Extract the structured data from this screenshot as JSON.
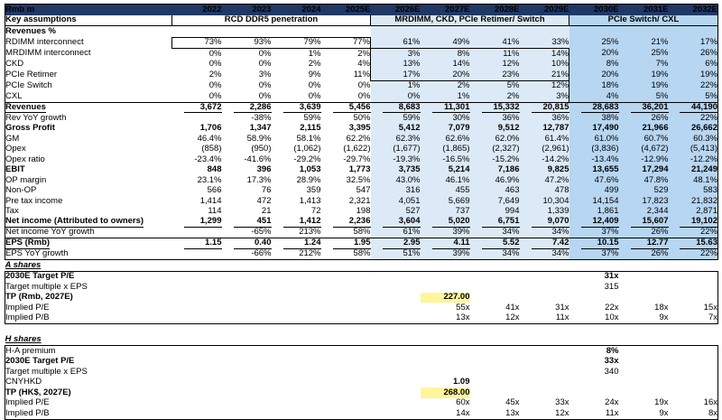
{
  "colors": {
    "header_navy": "#1F3864",
    "band_light_blue": "#DCEAF7",
    "band_medium_blue": "#B7D6F2",
    "highlight_yellow": "#FFF59B",
    "accent_blue_text": "#0000EE"
  },
  "table": {
    "header_label": "Rmb m",
    "years": [
      "2022",
      "2023",
      "2024",
      "2025E",
      "2026E",
      "2027E",
      "2028E",
      "2029E",
      "2030E",
      "2031E",
      "2032E"
    ],
    "key_assumptions": {
      "label": "Key assumptions",
      "bands": [
        {
          "text": "RCD DDR5 penetration",
          "cols": 4,
          "bg": "none"
        },
        {
          "text": "MRDIMM, CKD, PCIe Retimer/ Switch",
          "cols": 4,
          "bg": "light"
        },
        {
          "text": "PCIe Switch/ CXL",
          "cols": 3,
          "bg": "medium"
        }
      ]
    },
    "main_rows": [
      {
        "id": "revenues-pct",
        "label": "Revenues %",
        "b": 1,
        "values": [
          "",
          "",
          "",
          "",
          "",
          "",
          "",
          "",
          "",
          "",
          ""
        ]
      },
      {
        "id": "rdimm",
        "label": "RDIMM interconnect",
        "ind": 1,
        "values": [
          "73%",
          "93%",
          "79%",
          "77%",
          "61%",
          "49%",
          "41%",
          "33%",
          "25%",
          "21%",
          "17%"
        ]
      },
      {
        "id": "mrdimm",
        "label": "MRDIMM interconnect",
        "ind": 1,
        "values": [
          "0%",
          "0%",
          "1%",
          "2%",
          "3%",
          "8%",
          "11%",
          "14%",
          "20%",
          "25%",
          "26%"
        ]
      },
      {
        "id": "ckd",
        "label": "CKD",
        "ind": 1,
        "values": [
          "0%",
          "0%",
          "2%",
          "4%",
          "13%",
          "14%",
          "12%",
          "10%",
          "8%",
          "7%",
          "6%"
        ]
      },
      {
        "id": "pcie-retimer",
        "label": "PCIe Retimer",
        "ind": 1,
        "values": [
          "2%",
          "3%",
          "9%",
          "11%",
          "17%",
          "20%",
          "23%",
          "21%",
          "20%",
          "19%",
          "19%"
        ]
      },
      {
        "id": "pcie-switch",
        "label": "PCIe Switch",
        "ind": 1,
        "values": [
          "0%",
          "0%",
          "0%",
          "0%",
          "1%",
          "2%",
          "5%",
          "12%",
          "18%",
          "19%",
          "22%"
        ]
      },
      {
        "id": "cxl",
        "label": "CXL",
        "ind": 1,
        "values": [
          "0%",
          "0%",
          "0%",
          "0%",
          "0%",
          "1%",
          "2%",
          "3%",
          "4%",
          "5%",
          "5%"
        ]
      },
      {
        "id": "revenues",
        "label": "Revenues",
        "b": 1,
        "u": 1,
        "tl": 1,
        "values": [
          "3,672",
          "2,286",
          "3,639",
          "5,456",
          "8,683",
          "11,301",
          "15,332",
          "20,815",
          "28,683",
          "36,201",
          "44,190"
        ]
      },
      {
        "id": "rev-yoy",
        "label": "Rev YoY growth",
        "ind": 1,
        "values": [
          "",
          "-38%",
          "59%",
          "50%",
          "59%",
          "30%",
          "36%",
          "36%",
          "38%",
          "26%",
          "22%"
        ]
      },
      {
        "id": "gross-profit",
        "label": "Gross Profit",
        "b": 1,
        "values": [
          "1,706",
          "1,347",
          "2,115",
          "3,395",
          "5,412",
          "7,079",
          "9,512",
          "12,787",
          "17,490",
          "21,966",
          "26,662"
        ]
      },
      {
        "id": "gm",
        "label": "GM",
        "ind": 1,
        "values": [
          "46.4%",
          "58.9%",
          "58.1%",
          "62.2%",
          "62.3%",
          "62.6%",
          "62.0%",
          "61.4%",
          "61.0%",
          "60.7%",
          "60.3%"
        ]
      },
      {
        "id": "opex",
        "label": "Opex",
        "values": [
          "(858)",
          "(950)",
          "(1,062)",
          "(1,622)",
          "(1,677)",
          "(1,865)",
          "(2,327)",
          "(2,961)",
          "(3,836)",
          "(4,672)",
          "(5,413)"
        ]
      },
      {
        "id": "opex-ratio",
        "label": "Opex ratio",
        "ind": 1,
        "values": [
          "-23.4%",
          "-41.6%",
          "-29.2%",
          "-29.7%",
          "-19.3%",
          "-16.5%",
          "-15.2%",
          "-14.2%",
          "-13.4%",
          "-12.9%",
          "-12.2%"
        ]
      },
      {
        "id": "ebit",
        "label": "EBIT",
        "b": 1,
        "values": [
          "848",
          "396",
          "1,053",
          "1,773",
          "3,735",
          "5,214",
          "7,186",
          "9,825",
          "13,655",
          "17,294",
          "21,249"
        ]
      },
      {
        "id": "op-margin",
        "label": "OP margin",
        "ind": 1,
        "values": [
          "23.1%",
          "17.3%",
          "28.9%",
          "32.5%",
          "43.0%",
          "46.1%",
          "46.9%",
          "47.2%",
          "47.6%",
          "47.8%",
          "48.1%"
        ]
      },
      {
        "id": "non-op",
        "label": "Non-OP",
        "values": [
          "566",
          "76",
          "359",
          "547",
          "316",
          "455",
          "463",
          "478",
          "499",
          "529",
          "583"
        ]
      },
      {
        "id": "pre-tax-income",
        "label": "Pre tax income",
        "values": [
          "1,414",
          "472",
          "1,413",
          "2,321",
          "4,051",
          "5,669",
          "7,649",
          "10,304",
          "14,154",
          "17,823",
          "21,832"
        ]
      },
      {
        "id": "tax",
        "label": "Tax",
        "values": [
          "114",
          "21",
          "72",
          "198",
          "527",
          "737",
          "994",
          "1,339",
          "1,861",
          "2,344",
          "2,871"
        ]
      },
      {
        "id": "net-income",
        "label": "Net income (Attributed to owners)",
        "b": 1,
        "u": 1,
        "values": [
          "1,299",
          "451",
          "1,412",
          "2,236",
          "3,604",
          "5,020",
          "6,751",
          "9,070",
          "12,409",
          "15,607",
          "19,102"
        ]
      },
      {
        "id": "ni-yoy",
        "label": "Net income YoY growth",
        "ind": 1,
        "values": [
          "",
          "-65%",
          "213%",
          "58%",
          "61%",
          "39%",
          "34%",
          "34%",
          "37%",
          "26%",
          "22%"
        ]
      },
      {
        "id": "eps",
        "label": "EPS (Rmb)",
        "b": 1,
        "u": 1,
        "tl": 1,
        "values": [
          "1.15",
          "0.40",
          "1.24",
          "1.95",
          "2.95",
          "4.11",
          "5.52",
          "7.42",
          "10.15",
          "12.77",
          "15.63"
        ]
      },
      {
        "id": "eps-yoy",
        "label": "EPS YoY growth",
        "ind": 1,
        "bb": 1,
        "values": [
          "",
          "-66%",
          "212%",
          "58%",
          "51%",
          "39%",
          "34%",
          "34%",
          "37%",
          "26%",
          "22%"
        ]
      }
    ],
    "a_shares": {
      "title": "A shares",
      "rows": [
        {
          "id": "a-target-pe",
          "label": "2030E Target P/E",
          "b": 1,
          "values": [
            "",
            "",
            "",
            "",
            "",
            "",
            "",
            "",
            {
              "v": "31x",
              "c": "blue",
              "b": 1
            },
            "",
            ""
          ]
        },
        {
          "id": "a-multiple-eps",
          "label": "Target multiple x EPS",
          "values": [
            "",
            "",
            "",
            "",
            "",
            "",
            "",
            "",
            "315",
            "",
            ""
          ]
        },
        {
          "id": "a-tp",
          "label": "TP (Rmb, 2027E)",
          "b": 1,
          "values": [
            "",
            "",
            "",
            "",
            "",
            {
              "v": "227.00",
              "hl": 1,
              "b": 1
            },
            "",
            "",
            "",
            "",
            ""
          ]
        },
        {
          "id": "a-implied-pe",
          "label": "Implied P/E",
          "values": [
            "",
            "",
            "",
            "",
            "",
            "55x",
            "41x",
            "31x",
            "22x",
            "18x",
            "15x"
          ]
        },
        {
          "id": "a-implied-pb",
          "label": "Implied P/B",
          "values": [
            "",
            "",
            "",
            "",
            "",
            "13x",
            "12x",
            "11x",
            "10x",
            "9x",
            "7x"
          ]
        }
      ]
    },
    "h_shares": {
      "title": "H shares",
      "rows": [
        {
          "id": "h-premium",
          "label": "H-A premium",
          "values": [
            "",
            "",
            "",
            "",
            "",
            "",
            "",
            "",
            {
              "v": "8%",
              "c": "blue",
              "b": 1
            },
            "",
            ""
          ]
        },
        {
          "id": "h-target-pe",
          "label": "2030E Target P/E",
          "b": 1,
          "values": [
            "",
            "",
            "",
            "",
            "",
            "",
            "",
            "",
            {
              "v": "33x",
              "c": "blue",
              "b": 1
            },
            "",
            ""
          ]
        },
        {
          "id": "h-multiple-eps",
          "label": "Target multiple x EPS",
          "values": [
            "",
            "",
            "",
            "",
            "",
            "",
            "",
            "",
            "340",
            "",
            ""
          ]
        },
        {
          "id": "h-cnyhkd",
          "label": "CNYHKD",
          "values": [
            "",
            "",
            "",
            "",
            "",
            {
              "v": "1.09",
              "c": "blue",
              "b": 1
            },
            "",
            "",
            "",
            "",
            ""
          ]
        },
        {
          "id": "h-tp",
          "label": "TP (HK$, 2027E)",
          "b": 1,
          "values": [
            "",
            "",
            "",
            "",
            "",
            {
              "v": "268.00",
              "hl": 1,
              "b": 1
            },
            "",
            "",
            "",
            "",
            ""
          ]
        },
        {
          "id": "h-implied-pe",
          "label": "Implied P/E",
          "values": [
            "",
            "",
            "",
            "",
            "",
            "60x",
            "45x",
            "33x",
            "24x",
            "19x",
            "16x"
          ]
        },
        {
          "id": "h-implied-pb",
          "label": "Implied P/B",
          "values": [
            "",
            "",
            "",
            "",
            "",
            "14x",
            "13x",
            "12x",
            "11x",
            "9x",
            "8x"
          ]
        }
      ]
    }
  }
}
